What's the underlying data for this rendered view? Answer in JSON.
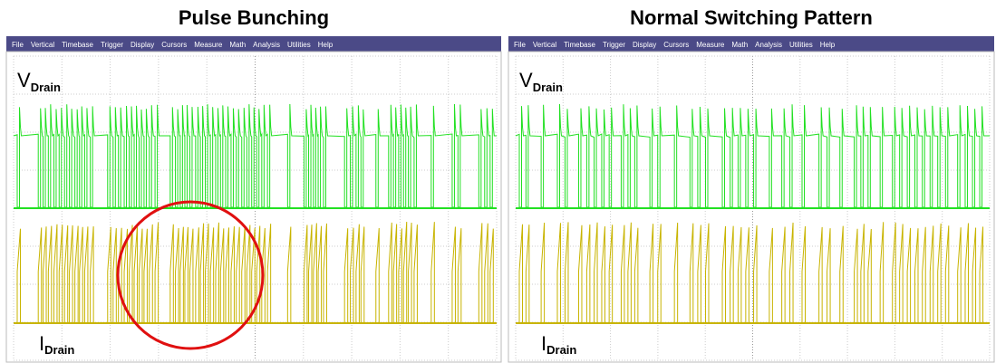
{
  "panels": [
    {
      "title": "Pulse Bunching",
      "menu": [
        "File",
        "Vertical",
        "Timebase",
        "Trigger",
        "Display",
        "Cursors",
        "Measure",
        "Math",
        "Analysis",
        "Utilities",
        "Help"
      ],
      "v_label": {
        "main": "V",
        "sub": "Drain"
      },
      "i_label": {
        "main": "I",
        "sub": "Drain"
      }
    },
    {
      "title": "Normal Switching Pattern",
      "menu": [
        "File",
        "Vertical",
        "Timebase",
        "Trigger",
        "Display",
        "Cursors",
        "Measure",
        "Math",
        "Analysis",
        "Utilities",
        "Help"
      ],
      "v_label": {
        "main": "V",
        "sub": "Drain"
      },
      "i_label": {
        "main": "I",
        "sub": "Drain"
      }
    }
  ]
}
